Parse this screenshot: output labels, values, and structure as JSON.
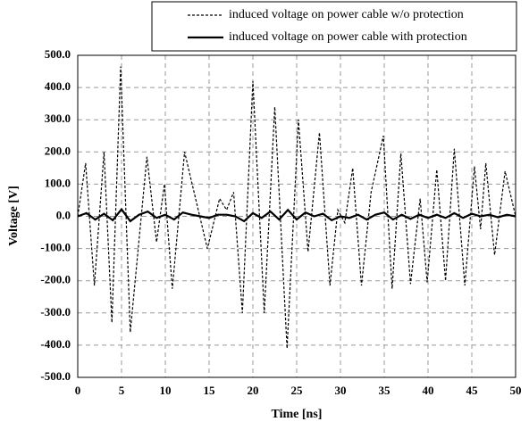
{
  "chart_data": {
    "type": "line",
    "x_label": "Time [ns]",
    "y_label": "Voltage [V]",
    "xlim": [
      0,
      50
    ],
    "xticks": [
      0,
      5,
      10,
      15,
      20,
      25,
      30,
      35,
      40,
      45,
      50
    ],
    "ylim": [
      -500,
      500
    ],
    "yticks": [
      {
        "value": -500,
        "label": "-500.0"
      },
      {
        "value": -400,
        "label": "-400.0"
      },
      {
        "value": -300,
        "label": "-300.0"
      },
      {
        "value": -200,
        "label": "-200.0"
      },
      {
        "value": -100,
        "label": "-100.0"
      },
      {
        "value": 0,
        "label": "0.0"
      },
      {
        "value": 100,
        "label": "100.0"
      },
      {
        "value": 200,
        "label": "200.0"
      },
      {
        "value": 300,
        "label": "300.0"
      },
      {
        "value": 400,
        "label": "400.0"
      },
      {
        "value": 500,
        "label": "500.0"
      }
    ],
    "grid": true,
    "legend": "top-right",
    "series": [
      {
        "name": "induced voltage on power cable w/o protection",
        "color": "#000000",
        "dash": true,
        "x": [
          0,
          0.9,
          1.9,
          3.0,
          3.9,
          4.9,
          6.0,
          7.9,
          9.0,
          9.9,
          10.8,
          12.2,
          13.5,
          14.8,
          16.2,
          17.0,
          17.8,
          18.8,
          20.0,
          21.3,
          22.5,
          23.9,
          25.2,
          26.3,
          27.6,
          28.8,
          29.7,
          30.5,
          31.4,
          32.4,
          33.5,
          34.9,
          35.9,
          36.9,
          38.0,
          39.1,
          39.9,
          41.0,
          42.0,
          43.0,
          44.2,
          45.3,
          46.0,
          46.6,
          47.6,
          48.8,
          50.0
        ],
        "values": [
          0,
          165,
          -215,
          200,
          -330,
          465,
          -360,
          185,
          -80,
          100,
          -225,
          200,
          50,
          -100,
          55,
          20,
          75,
          -300,
          420,
          -300,
          340,
          -410,
          300,
          -110,
          260,
          -215,
          20,
          -20,
          150,
          -215,
          75,
          250,
          -225,
          195,
          -210,
          55,
          -205,
          145,
          -200,
          210,
          -215,
          155,
          -40,
          165,
          -120,
          140,
          0
        ]
      },
      {
        "name": "induced voltage on power cable with protection",
        "color": "#000000",
        "dash": false,
        "x": [
          0,
          1,
          2,
          3,
          4,
          5,
          6,
          7,
          8,
          9,
          10,
          11,
          12,
          13,
          14,
          15,
          16,
          17,
          18,
          19,
          20,
          21,
          22,
          23,
          24,
          25,
          26,
          27,
          28,
          29,
          30,
          31,
          32,
          33,
          34,
          35,
          36,
          37,
          38,
          39,
          40,
          41,
          42,
          43,
          44,
          45,
          46,
          47,
          48,
          49,
          50
        ],
        "values": [
          0,
          10,
          -10,
          8,
          -12,
          22,
          -15,
          5,
          15,
          -5,
          5,
          -10,
          12,
          5,
          0,
          -5,
          5,
          5,
          0,
          -15,
          10,
          -5,
          15,
          -10,
          20,
          -10,
          12,
          0,
          8,
          -12,
          0,
          -5,
          5,
          -10,
          5,
          12,
          -10,
          5,
          -8,
          5,
          -5,
          5,
          -5,
          10,
          -5,
          8,
          0,
          5,
          -3,
          5,
          0
        ]
      }
    ]
  }
}
